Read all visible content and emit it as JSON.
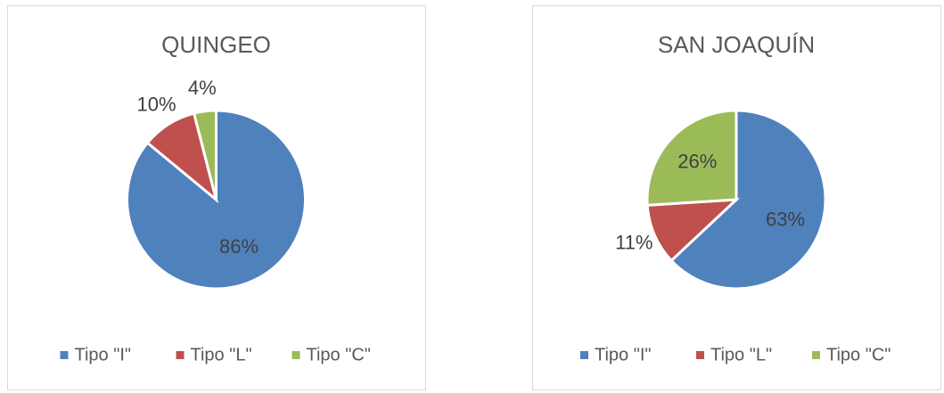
{
  "chart_data": [
    {
      "type": "pie",
      "title": "QUINGEO",
      "categories": [
        "Tipo \"I\"",
        "Tipo \"L\"",
        "Tipo \"C\""
      ],
      "values": [
        86,
        10,
        4
      ],
      "value_labels": [
        "86%",
        "10%",
        "4%"
      ],
      "colors": [
        "#4f81bd",
        "#c0504d",
        "#9bbb59"
      ]
    },
    {
      "type": "pie",
      "title": "SAN JOAQUÍN",
      "categories": [
        "Tipo \"I\"",
        "Tipo \"L\"",
        "Tipo \"C\""
      ],
      "values": [
        63,
        11,
        26
      ],
      "value_labels": [
        "63%",
        "11%",
        "26%"
      ],
      "colors": [
        "#4f81bd",
        "#c0504d",
        "#9bbb59"
      ]
    }
  ]
}
